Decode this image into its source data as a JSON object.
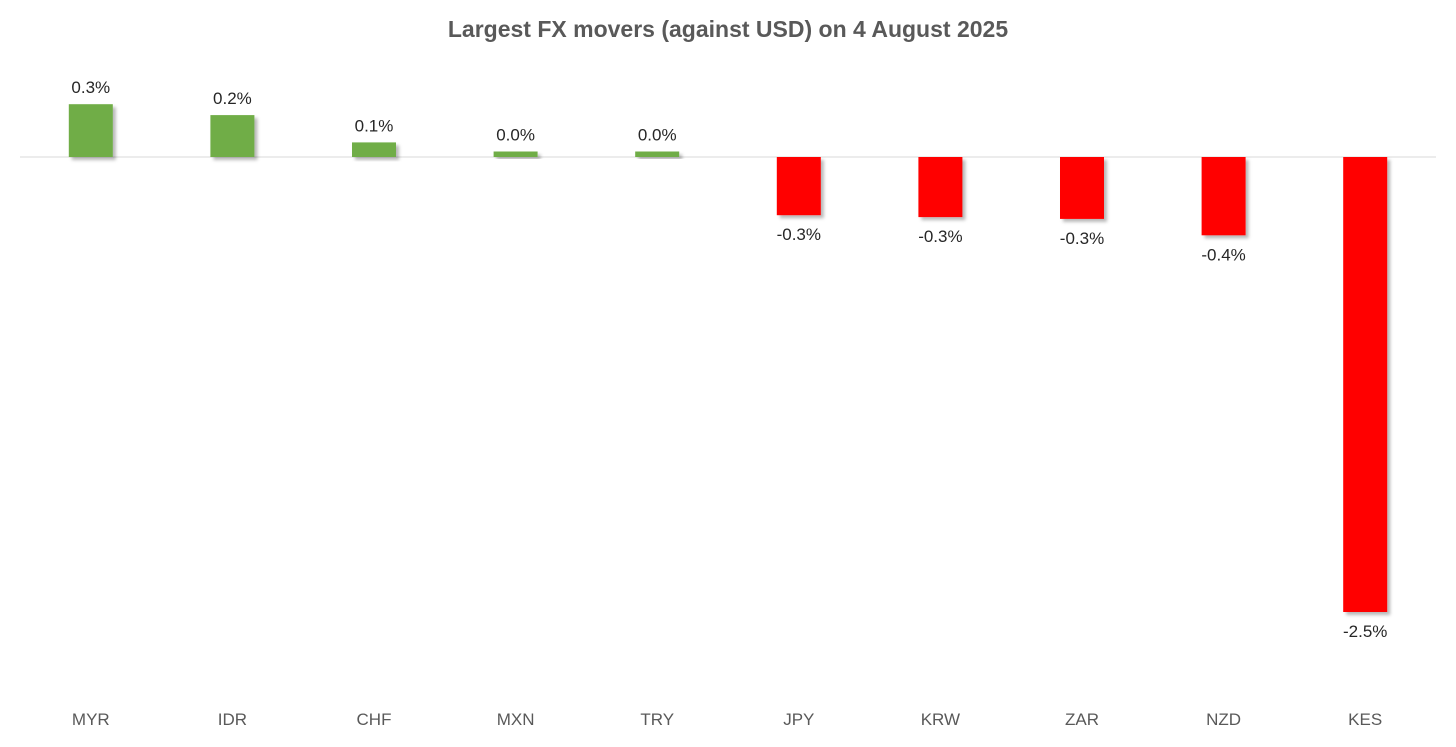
{
  "chart_data": {
    "type": "bar",
    "title": "Largest FX movers (against USD) on 4 August 2025",
    "xlabel": "",
    "ylabel": "",
    "categories": [
      "MYR",
      "IDR",
      "CHF",
      "MXN",
      "TRY",
      "JPY",
      "KRW",
      "ZAR",
      "NZD",
      "KES"
    ],
    "values": [
      0.29,
      0.23,
      0.08,
      0.03,
      0.03,
      -0.32,
      -0.33,
      -0.34,
      -0.43,
      -2.5
    ],
    "data_labels": [
      "0.3%",
      "0.2%",
      "0.1%",
      "0.0%",
      "0.0%",
      "-0.3%",
      "-0.3%",
      "-0.3%",
      "-0.4%",
      "-2.5%"
    ],
    "ylim": [
      -2.5,
      0.29
    ],
    "grid": false,
    "legend": "none",
    "colors": {
      "positive": "#70ad47",
      "negative": "#ff0000",
      "zero_line": "#d9d9d9"
    }
  }
}
